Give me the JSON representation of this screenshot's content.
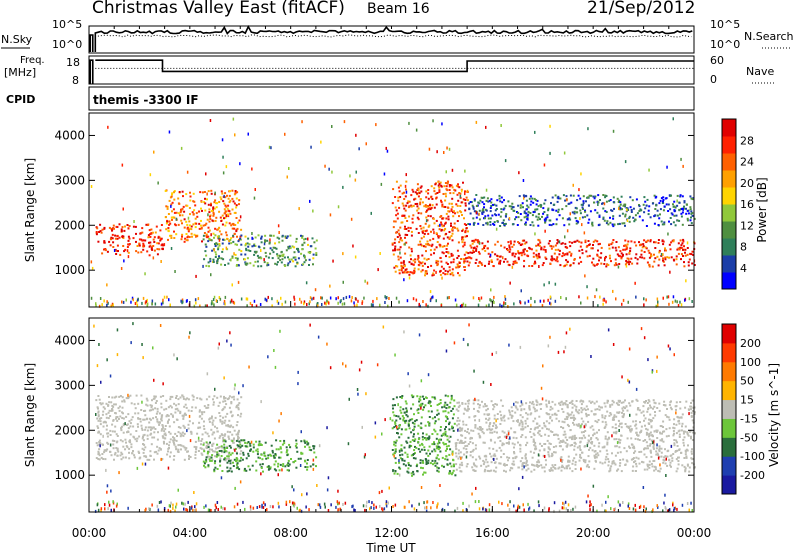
{
  "header": {
    "title": "Christmas Valley East (fitACF)",
    "beam": "Beam 16",
    "date": "21/Sep/2012"
  },
  "strip1": {
    "left_label": "N.Sky",
    "left_ticks": [
      "10^5",
      "10^0"
    ],
    "right_label": "N.Search",
    "right_ticks": [
      "10^5",
      "10^0"
    ]
  },
  "strip2": {
    "left_label_1": "Freq.",
    "left_label_2": "[MHz]",
    "left_ticks": [
      "18",
      "8"
    ],
    "right_label": "Nave",
    "right_ticks": [
      "60",
      "0"
    ]
  },
  "cpid": {
    "label": "CPID",
    "value": "themis -3300 IF"
  },
  "x_axis": {
    "label": "Time UT",
    "ticks": [
      "00:00",
      "04:00",
      "08:00",
      "12:00",
      "16:00",
      "20:00",
      "00:00"
    ]
  },
  "power_panel": {
    "ylabel": "Slant Range [km]",
    "yticks": [
      "4000",
      "3000",
      "2000",
      "1000"
    ],
    "colorbar_label": "Power [dB]",
    "colorbar_ticks": [
      "28",
      "24",
      "20",
      "16",
      "12",
      "8",
      "4"
    ],
    "colorbar_colors": [
      "#0000ff",
      "#1b3ea8",
      "#2f7f5a",
      "#4f8f40",
      "#90c83a",
      "#ffd400",
      "#ffa000",
      "#ff6000",
      "#ff2000",
      "#e00000"
    ]
  },
  "velocity_panel": {
    "ylabel": "Slant Range [km]",
    "yticks": [
      "4000",
      "3000",
      "2000",
      "1000"
    ],
    "colorbar_label": "Velocity [m s^-1]",
    "colorbar_ticks": [
      "200",
      "100",
      "50",
      "15",
      "-15",
      "-50",
      "-100",
      "-200"
    ],
    "colorbar_colors": [
      "#1a1aa0",
      "#1f3fb0",
      "#2a6e3c",
      "#6cc63a",
      "#bdbdb4",
      "#ffb400",
      "#ff7a00",
      "#ff3a00",
      "#e00000"
    ]
  },
  "chart_data": [
    {
      "type": "heatmap",
      "title": "Power",
      "xlabel": "Time UT",
      "ylabel": "Slant Range [km]",
      "xlim": [
        "00:00",
        "24:00"
      ],
      "ylim": [
        180,
        4500
      ],
      "colorbar": {
        "label": "Power [dB]",
        "range": [
          0,
          30
        ],
        "ticks": [
          4,
          8,
          12,
          16,
          20,
          24,
          28
        ]
      },
      "echo_regions": [
        {
          "start": "00:15",
          "end": "02:55",
          "range_km": [
            1350,
            2050
          ],
          "power_db": 26
        },
        {
          "start": "03:00",
          "end": "06:00",
          "range_km": [
            1650,
            2800
          ],
          "power_db": 22
        },
        {
          "start": "04:30",
          "end": "09:00",
          "range_km": [
            1100,
            1800
          ],
          "power_db": 10
        },
        {
          "start": "12:00",
          "end": "15:00",
          "range_km": [
            900,
            3000
          ],
          "power_db": 24
        },
        {
          "start": "15:00",
          "end": "24:00",
          "range_km": [
            1100,
            1700
          ],
          "power_db": 26
        },
        {
          "start": "15:00",
          "end": "24:00",
          "range_km": [
            2000,
            2700
          ],
          "power_db": 6
        }
      ]
    },
    {
      "type": "heatmap",
      "title": "Velocity",
      "xlabel": "Time UT",
      "ylabel": "Slant Range [km]",
      "xlim": [
        "00:00",
        "24:00"
      ],
      "ylim": [
        180,
        4500
      ],
      "colorbar": {
        "label": "Velocity [m s^-1]",
        "range": [
          -250,
          250
        ],
        "ticks": [
          200,
          100,
          50,
          15,
          -15,
          -50,
          -100,
          -200
        ]
      },
      "echo_regions": [
        {
          "start": "00:15",
          "end": "06:00",
          "range_km": [
            1350,
            2800
          ],
          "velocity": 0
        },
        {
          "start": "04:30",
          "end": "09:00",
          "range_km": [
            1100,
            1800
          ],
          "velocity": 30
        },
        {
          "start": "12:00",
          "end": "14:30",
          "range_km": [
            1000,
            2800
          ],
          "velocity": 30
        },
        {
          "start": "14:30",
          "end": "24:00",
          "range_km": [
            1100,
            2700
          ],
          "velocity": 0
        }
      ]
    },
    {
      "type": "line",
      "title": "N.Sky / N.Search",
      "x": [
        "00:00",
        "24:00"
      ],
      "series": [
        {
          "name": "N.Sky",
          "description": "solid, near top of 10^0-10^5 log scale"
        },
        {
          "name": "N.Search",
          "description": "dotted, slightly below N.Sky"
        }
      ]
    },
    {
      "type": "line",
      "title": "Freq. [MHz] / Nave",
      "series": [
        {
          "name": "Freq. [MHz]",
          "x": [
            "00:15",
            "02:55",
            "02:55",
            "15:00",
            "15:00",
            "24:00"
          ],
          "y": [
            16.5,
            16.5,
            12.5,
            12.5,
            16.2,
            16.2
          ]
        },
        {
          "name": "Nave",
          "x": [
            "00:15",
            "24:00"
          ],
          "y": [
            40,
            40
          ]
        }
      ]
    }
  ]
}
